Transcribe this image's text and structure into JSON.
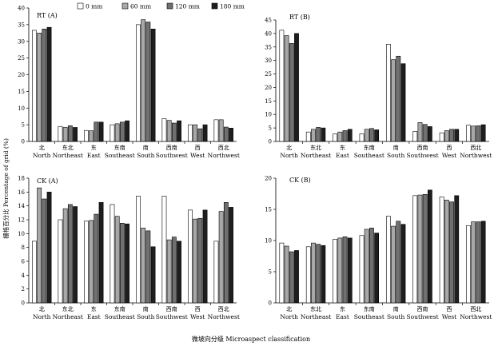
{
  "figure": {
    "xlabel": "微坡向分级 Microaspect classification",
    "ylabel": "栅格百分比 Percentage of grid (%)"
  },
  "legend": {
    "entries": [
      "0 mm",
      "60 mm",
      "120 mm",
      "180 mm"
    ],
    "colors": [
      "#ffffff",
      "#a8a8a8",
      "#707070",
      "#1e1e1e"
    ]
  },
  "categories_cn": [
    "北",
    "东北",
    "东",
    "东南",
    "南",
    "西南",
    "西",
    "西北"
  ],
  "categories_en": [
    "North",
    "Northeast",
    "East",
    "Southeast",
    "South",
    "Southwest",
    "West",
    "Northwest"
  ],
  "chart_data": [
    {
      "type": "bar",
      "title": "RT (A)",
      "categories": [
        "North",
        "Northeast",
        "East",
        "Southeast",
        "South",
        "Southwest",
        "West",
        "Northwest"
      ],
      "ylim": [
        0,
        40
      ],
      "yticks": [
        0,
        5,
        10,
        15,
        20,
        25,
        30,
        35,
        40
      ],
      "series": [
        {
          "name": "0 mm",
          "values": [
            33.3,
            4.5,
            3.3,
            5.0,
            35.0,
            6.8,
            5.0,
            6.5
          ]
        },
        {
          "name": "60 mm",
          "values": [
            32.5,
            4.2,
            3.2,
            5.3,
            36.5,
            6.3,
            5.0,
            6.5
          ]
        },
        {
          "name": "120 mm",
          "values": [
            33.7,
            4.7,
            5.8,
            5.8,
            35.8,
            5.5,
            3.8,
            4.3
          ]
        },
        {
          "name": "180 mm",
          "values": [
            34.2,
            4.2,
            5.8,
            6.2,
            33.7,
            6.2,
            5.0,
            4.0
          ]
        }
      ]
    },
    {
      "type": "bar",
      "title": "RT (B)",
      "categories": [
        "North",
        "Northeast",
        "East",
        "Southeast",
        "South",
        "Southwest",
        "West",
        "Northwest"
      ],
      "ylim": [
        0,
        45
      ],
      "yticks": [
        0,
        5,
        10,
        15,
        20,
        25,
        30,
        35,
        40,
        45
      ],
      "series": [
        {
          "name": "0 mm",
          "values": [
            41.2,
            3.5,
            2.8,
            2.8,
            36.0,
            3.7,
            3.2,
            6.0
          ]
        },
        {
          "name": "60 mm",
          "values": [
            39.2,
            4.5,
            3.5,
            4.5,
            30.3,
            7.0,
            4.0,
            5.7
          ]
        },
        {
          "name": "120 mm",
          "values": [
            36.3,
            5.2,
            4.0,
            4.8,
            31.6,
            6.3,
            4.5,
            5.8
          ]
        },
        {
          "name": "180 mm",
          "values": [
            40.0,
            5.0,
            4.5,
            4.3,
            28.8,
            5.5,
            4.5,
            6.2
          ]
        }
      ]
    },
    {
      "type": "bar",
      "title": "CK (A)",
      "categories": [
        "North",
        "Northeast",
        "East",
        "Southeast",
        "South",
        "Southwest",
        "West",
        "Northwest"
      ],
      "ylim": [
        0,
        18
      ],
      "yticks": [
        0,
        2,
        4,
        6,
        8,
        10,
        12,
        14,
        16,
        18
      ],
      "series": [
        {
          "name": "0 mm",
          "values": [
            8.9,
            12.0,
            11.8,
            14.2,
            15.4,
            15.4,
            13.4,
            8.9
          ]
        },
        {
          "name": "60 mm",
          "values": [
            16.6,
            13.6,
            11.9,
            12.5,
            10.8,
            9.1,
            12.1,
            13.2
          ]
        },
        {
          "name": "120 mm",
          "values": [
            15.0,
            14.2,
            12.8,
            11.5,
            10.4,
            9.5,
            12.2,
            14.5
          ]
        },
        {
          "name": "180 mm",
          "values": [
            16.0,
            13.9,
            14.5,
            11.4,
            8.1,
            8.9,
            13.4,
            13.8
          ]
        }
      ]
    },
    {
      "type": "bar",
      "title": "CK (B)",
      "categories": [
        "North",
        "Northeast",
        "East",
        "Southeast",
        "South",
        "Southwest",
        "West",
        "Northwest"
      ],
      "ylim": [
        0,
        20
      ],
      "yticks": [
        0,
        5,
        10,
        15,
        20
      ],
      "series": [
        {
          "name": "0 mm",
          "values": [
            9.6,
            9.0,
            10.2,
            10.8,
            13.9,
            17.2,
            17.0,
            12.4
          ]
        },
        {
          "name": "60 mm",
          "values": [
            9.1,
            9.6,
            10.4,
            11.8,
            12.3,
            17.3,
            16.5,
            13.0
          ]
        },
        {
          "name": "120 mm",
          "values": [
            8.2,
            9.4,
            10.6,
            12.0,
            13.1,
            17.4,
            16.2,
            13.0
          ]
        },
        {
          "name": "180 mm",
          "values": [
            8.4,
            9.2,
            10.4,
            11.2,
            12.6,
            18.1,
            17.2,
            13.1
          ]
        }
      ]
    }
  ]
}
